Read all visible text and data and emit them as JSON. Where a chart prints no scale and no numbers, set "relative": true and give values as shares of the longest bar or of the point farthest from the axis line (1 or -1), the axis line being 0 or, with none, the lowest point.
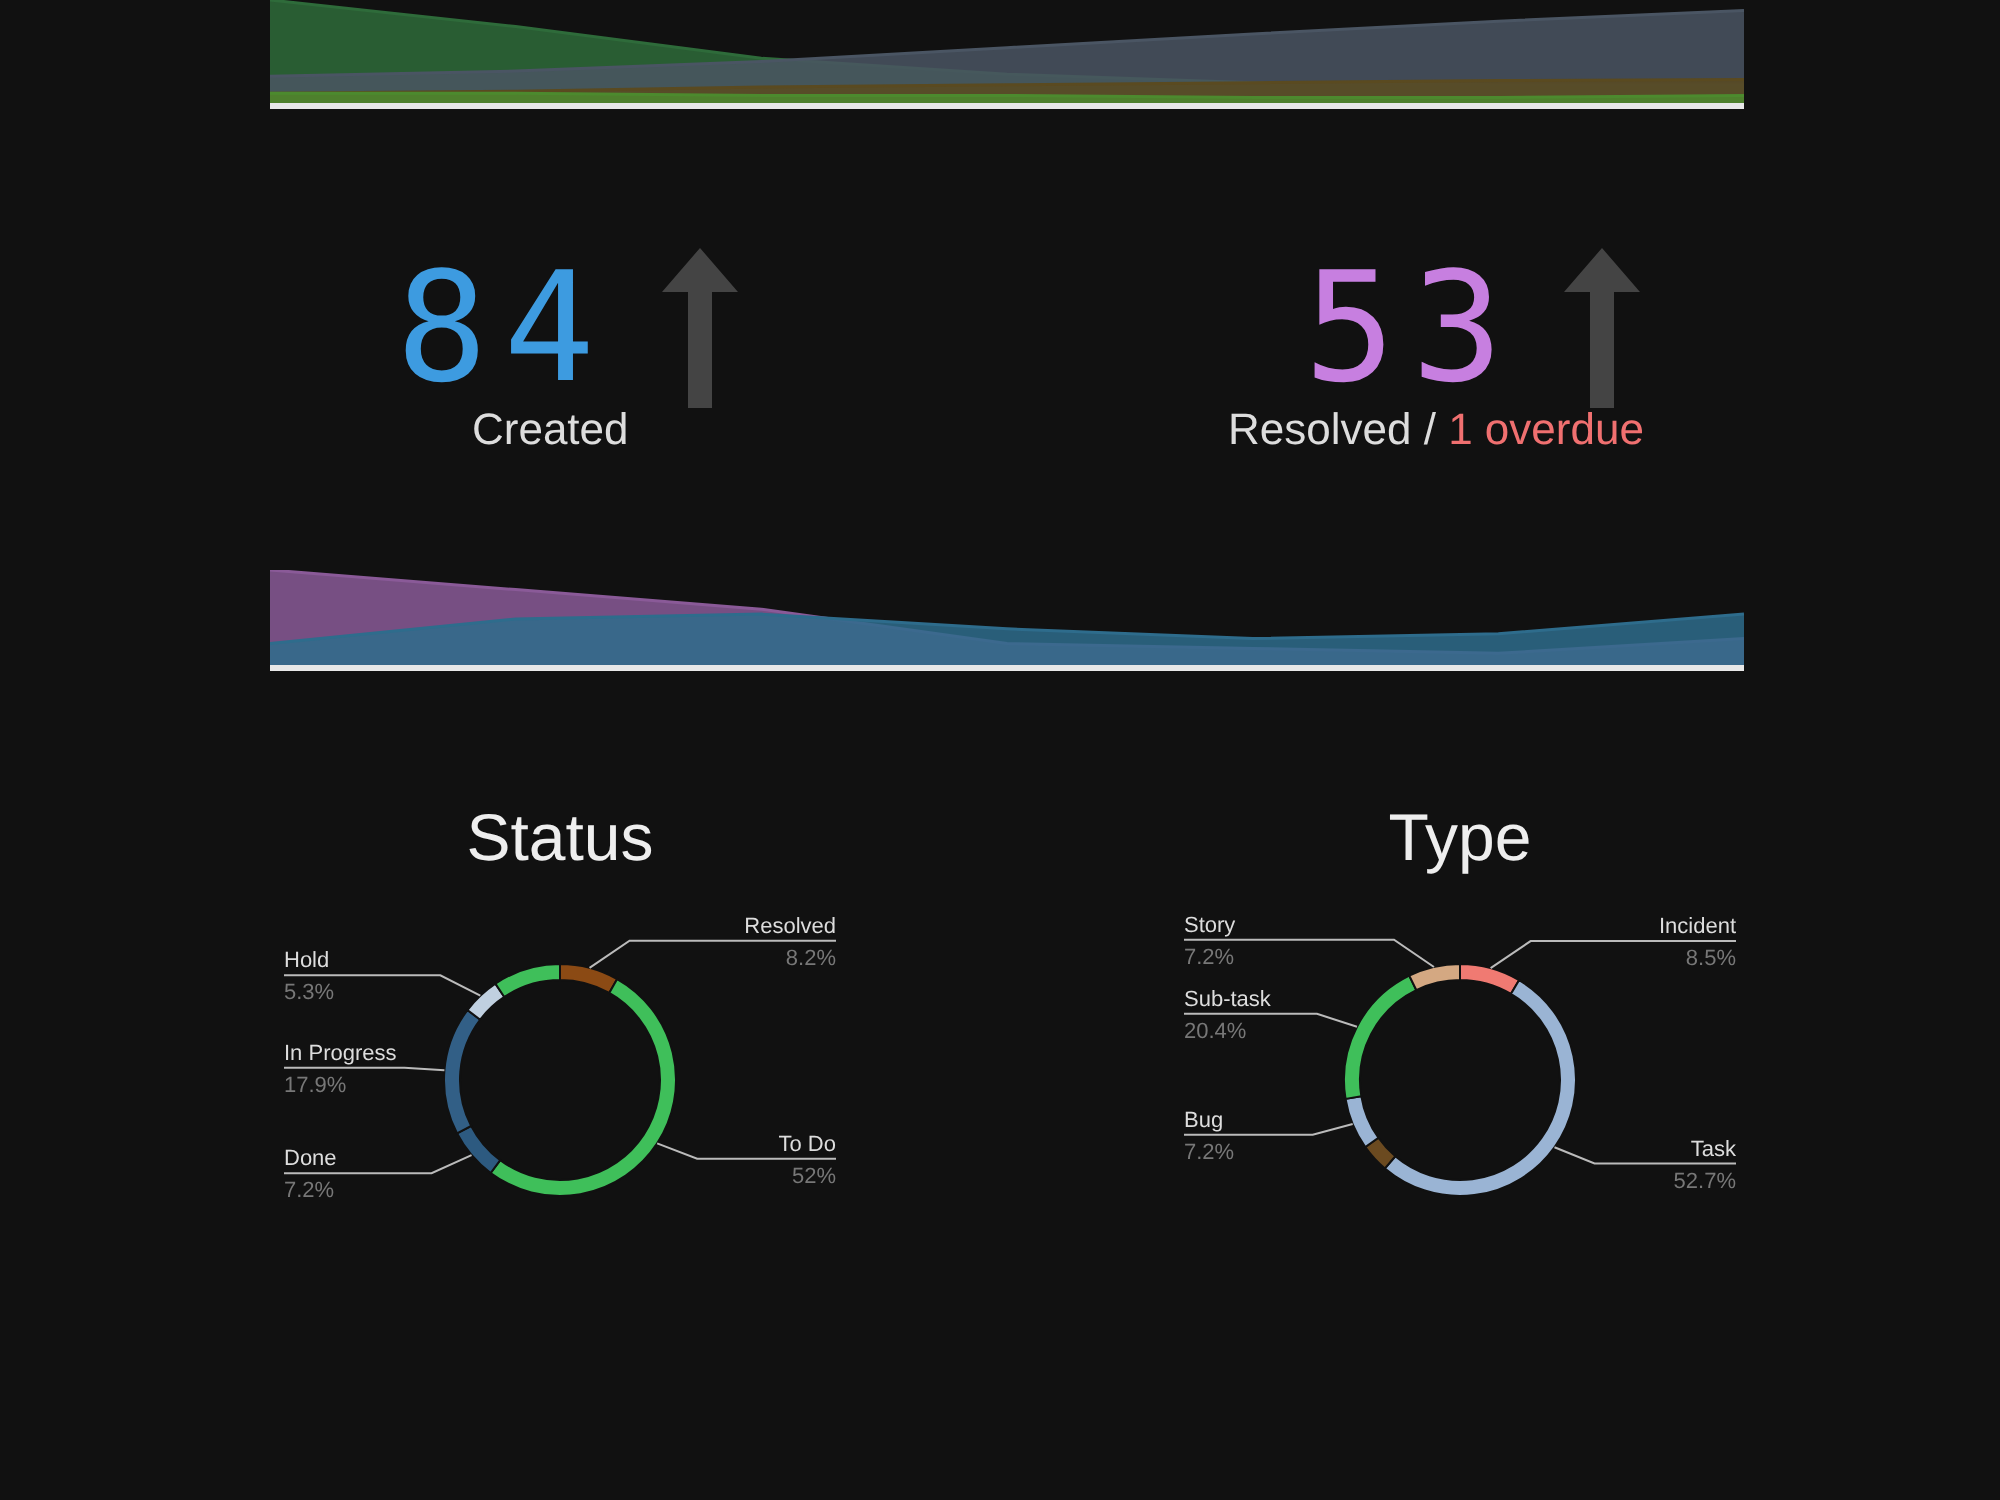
{
  "chart_data": [
    {
      "type": "area",
      "relative": true,
      "categories": [
        null,
        null,
        null,
        null,
        null,
        null,
        null
      ],
      "series": [
        {
          "color": "#2e6b3a",
          "values": [
            1.0,
            0.75,
            0.45,
            0.3,
            0.22,
            0.2,
            0.2
          ]
        },
        {
          "color": "#4a5563",
          "values": [
            0.28,
            0.33,
            0.42,
            0.55,
            0.68,
            0.8,
            0.9
          ]
        },
        {
          "color": "#5a4a20",
          "values": [
            0.12,
            0.14,
            0.18,
            0.2,
            0.22,
            0.24,
            0.25
          ]
        },
        {
          "color": "#4c8a2e",
          "values": [
            0.12,
            0.12,
            0.1,
            0.1,
            0.08,
            0.08,
            0.1
          ]
        }
      ]
    },
    {
      "type": "other",
      "annotations": [
        "84",
        "Created",
        "53",
        "Resolved /",
        "1 overdue"
      ]
    },
    {
      "type": "area",
      "relative": true,
      "categories": [
        null,
        null,
        null,
        null,
        null,
        null,
        null
      ],
      "series": [
        {
          "color": "#8a5a98",
          "values": [
            1.0,
            0.8,
            0.6,
            0.25,
            0.2,
            0.15,
            0.3
          ]
        },
        {
          "color": "#2e6c8c",
          "values": [
            0.25,
            0.5,
            0.55,
            0.4,
            0.3,
            0.35,
            0.55
          ]
        }
      ]
    },
    {
      "type": "donut",
      "title": "Status",
      "categories": [
        "Resolved",
        "To Do",
        "Done",
        "In Progress",
        "Hold",
        null
      ],
      "values": [
        8.2,
        52,
        7.2,
        17.9,
        5.3,
        9.4
      ],
      "value_labels": [
        "8.2%",
        "52%",
        "7.2%",
        "17.9%",
        "5.3%",
        null
      ],
      "colors": [
        "#8b4a14",
        "#3fbf5a",
        "#2d5a80",
        "#325f86",
        "#c0d0e0",
        "#3fbf5a"
      ]
    },
    {
      "type": "donut",
      "title": "Type",
      "categories": [
        "Incident",
        "Task",
        null,
        "Bug",
        "Sub-task",
        "Story"
      ],
      "values": [
        8.5,
        52.7,
        4.0,
        7.2,
        20.4,
        7.2
      ],
      "value_labels": [
        "8.5%",
        "52.7%",
        null,
        "7.2%",
        "20.4%",
        "7.2%"
      ],
      "colors": [
        "#f07a72",
        "#9ab4d4",
        "#6b4a20",
        "#9ab4d4",
        "#3fbf5a",
        "#d4a882"
      ]
    }
  ]
}
